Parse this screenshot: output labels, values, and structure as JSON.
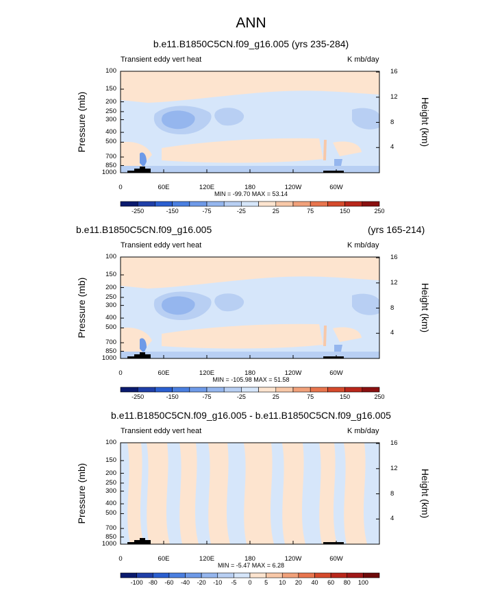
{
  "page": {
    "main_title": "ANN"
  },
  "chart_data": [
    {
      "type": "heatmap",
      "title": "b.e11.B1850C5CN.f09_g16.005 (yrs 235-284)",
      "title_right": "",
      "left_label": "Transient eddy vert heat",
      "right_label": "K mb/day",
      "ylabel": "Pressure (mb)",
      "y2label": "Height (km)",
      "pressure_ticks": [
        "100",
        "150",
        "200",
        "250",
        "300",
        "400",
        "500",
        "700",
        "850",
        "1000"
      ],
      "height_ticks": [
        "16",
        "12",
        "8",
        "4"
      ],
      "lon_ticks": [
        "0",
        "60E",
        "120E",
        "180",
        "120W",
        "60W"
      ],
      "stats": "MIN = -99.70   MAX = 53.14",
      "colorbar_labels": [
        "-250",
        "-150",
        "-75",
        "-25",
        "25",
        "75",
        "150",
        "250"
      ],
      "colorbar_colors": [
        "#0a1a6e",
        "#1f3fa8",
        "#2b5fd0",
        "#4a7fe0",
        "#6e9ae8",
        "#95b6ee",
        "#b8cff3",
        "#d6e6fa",
        "#fde4cf",
        "#f8c8a8",
        "#f1a17a",
        "#e8754e",
        "#d54a2c",
        "#b9271b",
        "#8a1010"
      ],
      "x_range": [
        0,
        360
      ],
      "y_range": [
        100,
        1000
      ]
    },
    {
      "type": "heatmap",
      "title": "b.e11.B1850C5CN.f09_g16.005",
      "title_right": "(yrs 165-214)",
      "left_label": "Transient eddy vert heat",
      "right_label": "K mb/day",
      "ylabel": "Pressure (mb)",
      "y2label": "Height (km)",
      "pressure_ticks": [
        "100",
        "150",
        "200",
        "250",
        "300",
        "400",
        "500",
        "700",
        "850",
        "1000"
      ],
      "height_ticks": [
        "16",
        "12",
        "8",
        "4"
      ],
      "lon_ticks": [
        "0",
        "60E",
        "120E",
        "180",
        "120W",
        "60W"
      ],
      "stats": "MIN = -105.98   MAX = 51.58",
      "colorbar_labels": [
        "-250",
        "-150",
        "-75",
        "-25",
        "25",
        "75",
        "150",
        "250"
      ],
      "colorbar_colors": [
        "#0a1a6e",
        "#1f3fa8",
        "#2b5fd0",
        "#4a7fe0",
        "#6e9ae8",
        "#95b6ee",
        "#b8cff3",
        "#d6e6fa",
        "#fde4cf",
        "#f8c8a8",
        "#f1a17a",
        "#e8754e",
        "#d54a2c",
        "#b9271b",
        "#8a1010"
      ],
      "x_range": [
        0,
        360
      ],
      "y_range": [
        100,
        1000
      ]
    },
    {
      "type": "heatmap",
      "title": "b.e11.B1850C5CN.f09_g16.005 - b.e11.B1850C5CN.f09_g16.005",
      "title_right": "",
      "left_label": "Transient eddy vert heat",
      "right_label": "K mb/day",
      "ylabel": "Pressure (mb)",
      "y2label": "Height (km)",
      "pressure_ticks": [
        "100",
        "150",
        "200",
        "250",
        "300",
        "400",
        "500",
        "700",
        "850",
        "1000"
      ],
      "height_ticks": [
        "16",
        "12",
        "8",
        "4"
      ],
      "lon_ticks": [
        "0",
        "60E",
        "120E",
        "180",
        "120W",
        "60W"
      ],
      "stats": "MIN = -5.47   MAX = 6.28",
      "colorbar_labels": [
        "-100",
        "-80",
        "-60",
        "-40",
        "-20",
        "-10",
        "-5",
        "0",
        "5",
        "10",
        "20",
        "40",
        "60",
        "80",
        "100"
      ],
      "colorbar_colors": [
        "#0a1a6e",
        "#1f3fa8",
        "#2b5fd0",
        "#4a7fe0",
        "#6e9ae8",
        "#95b6ee",
        "#b8cff3",
        "#d6e6fa",
        "#fde4cf",
        "#f8c8a8",
        "#f1a17a",
        "#e8754e",
        "#d54a2c",
        "#b9271b",
        "#a01818",
        "#6e0a0a"
      ],
      "x_range": [
        0,
        360
      ],
      "y_range": [
        100,
        1000
      ]
    }
  ]
}
